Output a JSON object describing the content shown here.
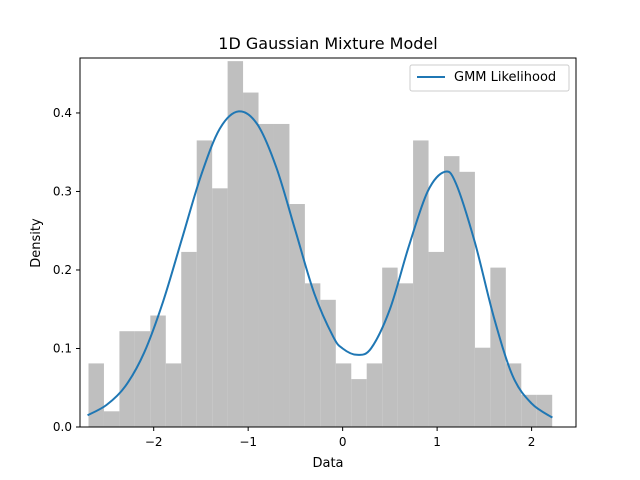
{
  "chart_data": {
    "type": "bar",
    "title": "1D Gaussian Mixture Model",
    "xlabel": "Data",
    "ylabel": "Density",
    "xlim": [
      -2.78,
      2.47
    ],
    "ylim": [
      0,
      0.47
    ],
    "x_ticks": [
      -2,
      -1,
      0,
      1,
      2
    ],
    "x_tick_labels": [
      "−2",
      "−1",
      "0",
      "1",
      "2"
    ],
    "y_ticks": [
      0.0,
      0.1,
      0.2,
      0.3,
      0.4
    ],
    "y_tick_labels": [
      "0.0",
      "0.1",
      "0.2",
      "0.3",
      "0.4"
    ],
    "grid": false,
    "legend_position": "top-right",
    "histogram": {
      "color": "#bfbfbf",
      "bin_start": -2.69,
      "bin_width": 0.1636,
      "values": [
        0.081,
        0.02,
        0.122,
        0.122,
        0.142,
        0.081,
        0.223,
        0.365,
        0.304,
        0.466,
        0.426,
        0.386,
        0.386,
        0.284,
        0.183,
        0.162,
        0.081,
        0.061,
        0.081,
        0.203,
        0.183,
        0.365,
        0.223,
        0.345,
        0.325,
        0.101,
        0.203,
        0.081,
        0.041,
        0.041
      ]
    },
    "series": [
      {
        "name": "GMM Likelihood",
        "color": "#1f77b4",
        "x": [
          -2.7,
          -2.5,
          -2.3,
          -2.1,
          -1.9,
          -1.7,
          -1.5,
          -1.3,
          -1.1,
          -0.9,
          -0.7,
          -0.5,
          -0.3,
          -0.1,
          0.0,
          0.15,
          0.3,
          0.5,
          0.7,
          0.9,
          1.08,
          1.2,
          1.4,
          1.6,
          1.8,
          2.0,
          2.22
        ],
        "values": [
          0.015,
          0.028,
          0.052,
          0.095,
          0.16,
          0.24,
          0.32,
          0.38,
          0.402,
          0.385,
          0.33,
          0.25,
          0.17,
          0.115,
          0.1,
          0.092,
          0.1,
          0.15,
          0.23,
          0.3,
          0.325,
          0.31,
          0.235,
          0.14,
          0.065,
          0.03,
          0.012
        ]
      }
    ]
  }
}
